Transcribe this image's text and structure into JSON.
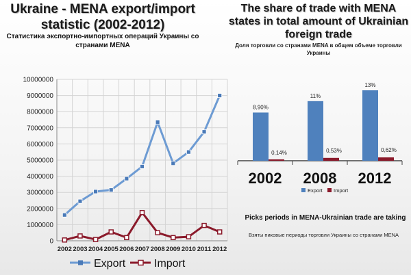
{
  "left": {
    "title": "Ukraine - MENA export/import statistic (2002-2012)",
    "subtitle": "Статистика экспортно-импортных операций Украины со странами MENA"
  },
  "right": {
    "title": "The share of trade with MENA states in total amount of Ukrainian foreign trade",
    "subtitle": "Доля торговли со странами MENA в общем объеме торговли Украины"
  },
  "peaks": {
    "title": "Picks periods in MENA-Ukrainian trade are taking",
    "subtitle": "Взяты пиковые периоды торговли Украины со странами MENA"
  },
  "chart_data": [
    {
      "type": "line",
      "x": [
        "2002",
        "2003",
        "2004",
        "2005",
        "2006",
        "2007",
        "2008",
        "2009",
        "2010",
        "2011",
        "2012"
      ],
      "ylim": [
        0,
        10000000
      ],
      "yticks": [
        "0",
        "1000000",
        "2000000",
        "3000000",
        "4000000",
        "5000000",
        "6000000",
        "7000000",
        "8000000",
        "9000000",
        "10000000"
      ],
      "grid": true,
      "legend_position": "bottom",
      "series": [
        {
          "name": "Export",
          "color": "#6d9bd3",
          "values": [
            1600000,
            2450000,
            3050000,
            3150000,
            3850000,
            4600000,
            7350000,
            4800000,
            5500000,
            6750000,
            9000000
          ]
        },
        {
          "name": "Import",
          "color": "#8b1a2b",
          "values": [
            50000,
            300000,
            80000,
            550000,
            200000,
            1750000,
            500000,
            200000,
            250000,
            950000,
            550000
          ]
        }
      ]
    },
    {
      "type": "bar",
      "categories": [
        "2002",
        "2008",
        "2012"
      ],
      "legend_position": "bottom",
      "series": [
        {
          "name": "Export",
          "color": "#4f81bd",
          "values": [
            8.9,
            11,
            13
          ],
          "labels": [
            "8,90%",
            "11%",
            "13%"
          ]
        },
        {
          "name": "Import",
          "color": "#8b1a2b",
          "values": [
            0.14,
            0.53,
            0.62
          ],
          "labels": [
            "0,14%",
            "0,53%",
            "0,62%"
          ]
        }
      ]
    }
  ]
}
